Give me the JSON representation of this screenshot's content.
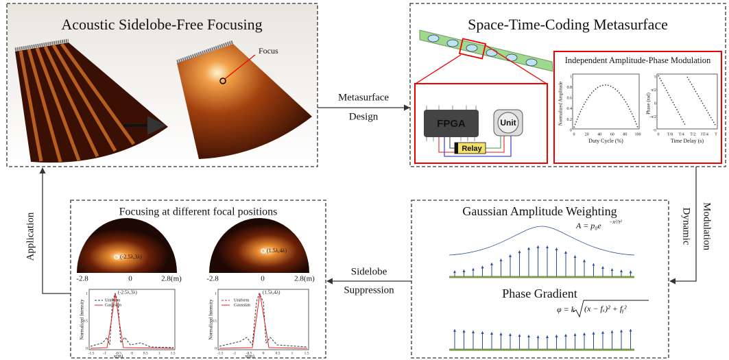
{
  "panels": {
    "focusing": {
      "title": "Acoustic Sidelobe-Free Focusing",
      "focus_label": "Focus"
    },
    "metasurface": {
      "title": "Space-Time-Coding Metasurface",
      "fpga": "FPGA",
      "relay": "Relay",
      "unit": "Unit",
      "modulation": {
        "title": "Independent Amplitude-Phase Modulation",
        "amplitude_plot": {
          "ylabel": "Normalized Amplitude",
          "xlabel": "Duty Cycle (%)",
          "xticks": [
            "0",
            "20",
            "40",
            "60",
            "80",
            "100"
          ],
          "yticks": [
            "0",
            "0.2",
            "0.4",
            "0.6",
            "0.8",
            "1"
          ]
        },
        "phase_plot": {
          "ylabel": "Phase (rad)",
          "xlabel": "Time Delay (s)",
          "xticks": [
            "0",
            "T/8",
            "T/4",
            "T/2",
            "3T/4",
            "T"
          ],
          "yticks": [
            "-π",
            "-π/2",
            "0",
            "π/2",
            "π"
          ]
        }
      }
    },
    "weighting": {
      "title": "Gaussian Amplitude Weighting",
      "amplitude_formula": {
        "base": "A = p₀e",
        "exponent": "−x²/τ²"
      },
      "subtitle": "Phase Gradient",
      "phase_formula": {
        "lhs": "φ = k",
        "radicand": "(x − fₓ)² + fᵧ²"
      }
    },
    "positions": {
      "title": "Focusing at different focal positions",
      "maps": [
        {
          "point": "(-2.5λ,3λ)",
          "xticks": [
            "-2.8",
            "0",
            "2.8(m)"
          ]
        },
        {
          "point": "(1.5λ,4λ)",
          "xticks": [
            "-2.8",
            "0",
            "2.8(m)"
          ]
        }
      ],
      "plots": [
        {
          "point": "(-2.5λ,3λ)",
          "ylabel": "Normalized Intensity",
          "xlabel": "x(m)",
          "legend": [
            "Uniform",
            "Gaussian"
          ],
          "xticks": [
            "-1.5",
            "-1",
            "-0.5",
            "0",
            "0.5",
            "1",
            "1.5"
          ],
          "yticks": [
            "0",
            "0.5",
            "1"
          ]
        },
        {
          "point": "(1.5λ,4λ)",
          "ylabel": "Normalized Intensity",
          "xlabel": "x(m)",
          "legend": [
            "Uniform",
            "Gaussian"
          ],
          "xticks": [
            "-1.5",
            "-1",
            "-0.5",
            "0",
            "0.5",
            "1",
            "1.5"
          ],
          "yticks": [
            "0",
            "0.5",
            "1"
          ]
        }
      ]
    }
  },
  "arrows": {
    "design": [
      "Metasurface",
      "Design"
    ],
    "modulation": [
      "Dynamic",
      "Modulation"
    ],
    "suppression": [
      "Sidelobe",
      "Suppression"
    ],
    "application": "Application"
  }
}
